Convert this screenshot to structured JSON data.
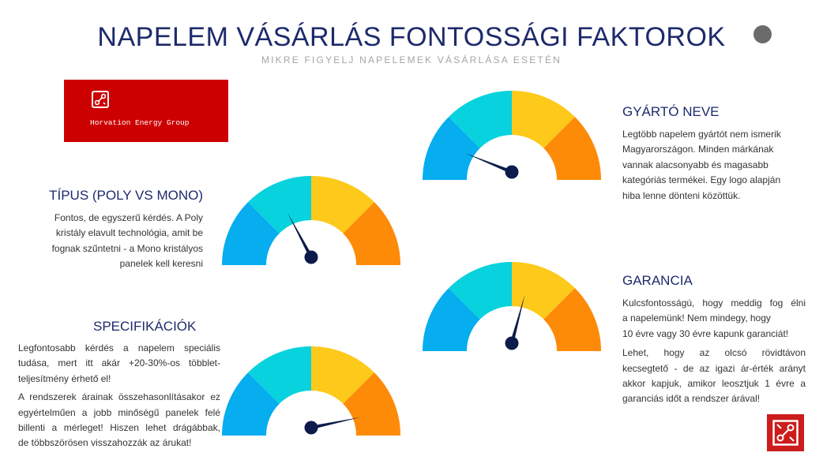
{
  "title": "NAPELEM VÁSÁRLÁS FONTOSSÁGI FAKTOROK",
  "subtitle": "MIKRE FIGYELJ NAPELEMEK VÁSÁRLÁSA ESETÉN",
  "logo": {
    "text": "Horvation Energy Group"
  },
  "colors": {
    "heading": "#1d2a6b",
    "segment_1": "#06adef",
    "segment_2": "#07d2dd",
    "segment_3": "#fdc91b",
    "segment_4": "#fd8b08",
    "needle": "#0d1b4a",
    "logo_bg": "#cc0000"
  },
  "sections": {
    "tipus": {
      "heading": "TÍPUS (POLY VS MONO)",
      "lines": [
        "Fontos, de egyszerű kérdés. A Poly",
        "kristály elavult technológia, amit be",
        "fognak szűntetni - a Mono kristályos",
        "panelek kell keresni"
      ],
      "needle_angle_deg": 118
    },
    "gyarto": {
      "heading": "GYÁRTÓ NEVE",
      "lines": [
        "Legtöbb napelem gyártót nem ismerik",
        "Magyarországon. Minden márkának",
        "vannak alacsonyabb és magasabb",
        "kategóriás termékei. Egy logo alapján",
        "hiba lenne dönteni közöttük."
      ],
      "needle_angle_deg": 158
    },
    "garancia": {
      "heading": "GARANCIA",
      "para1": [
        "Kulcsfontosságú, hogy meddig fog élni",
        "a napelemünk! Nem mindegy, hogy",
        "10 évre vagy 30 évre kapunk garanciát!"
      ],
      "para2": [
        "Lehet, hogy az olcsó rövidtávon",
        "kecsegtető - de az igazi ár-érték arányt",
        "akkor kapjuk, amikor leosztjuk 1 évre a",
        "garanciás időt a rendszer árával!"
      ],
      "needle_angle_deg": 75
    },
    "spec": {
      "heading": "SPECIFIKÁCIÓK",
      "para1": [
        "Legfontosabb kérdés a napelem speciális",
        "tudása, mert itt akár +20-30%-os többlet-",
        "teljesítmény érhető el!"
      ],
      "para2": [
        "A rendszerek árainak összehasonlításakor ez",
        "egyértelműen a jobb minőségű panelek felé",
        "billenti a mérleget! Hiszen lehet drágábbak,",
        "de többszörösen visszahozzák az árukat!"
      ],
      "needle_angle_deg": 12
    }
  }
}
